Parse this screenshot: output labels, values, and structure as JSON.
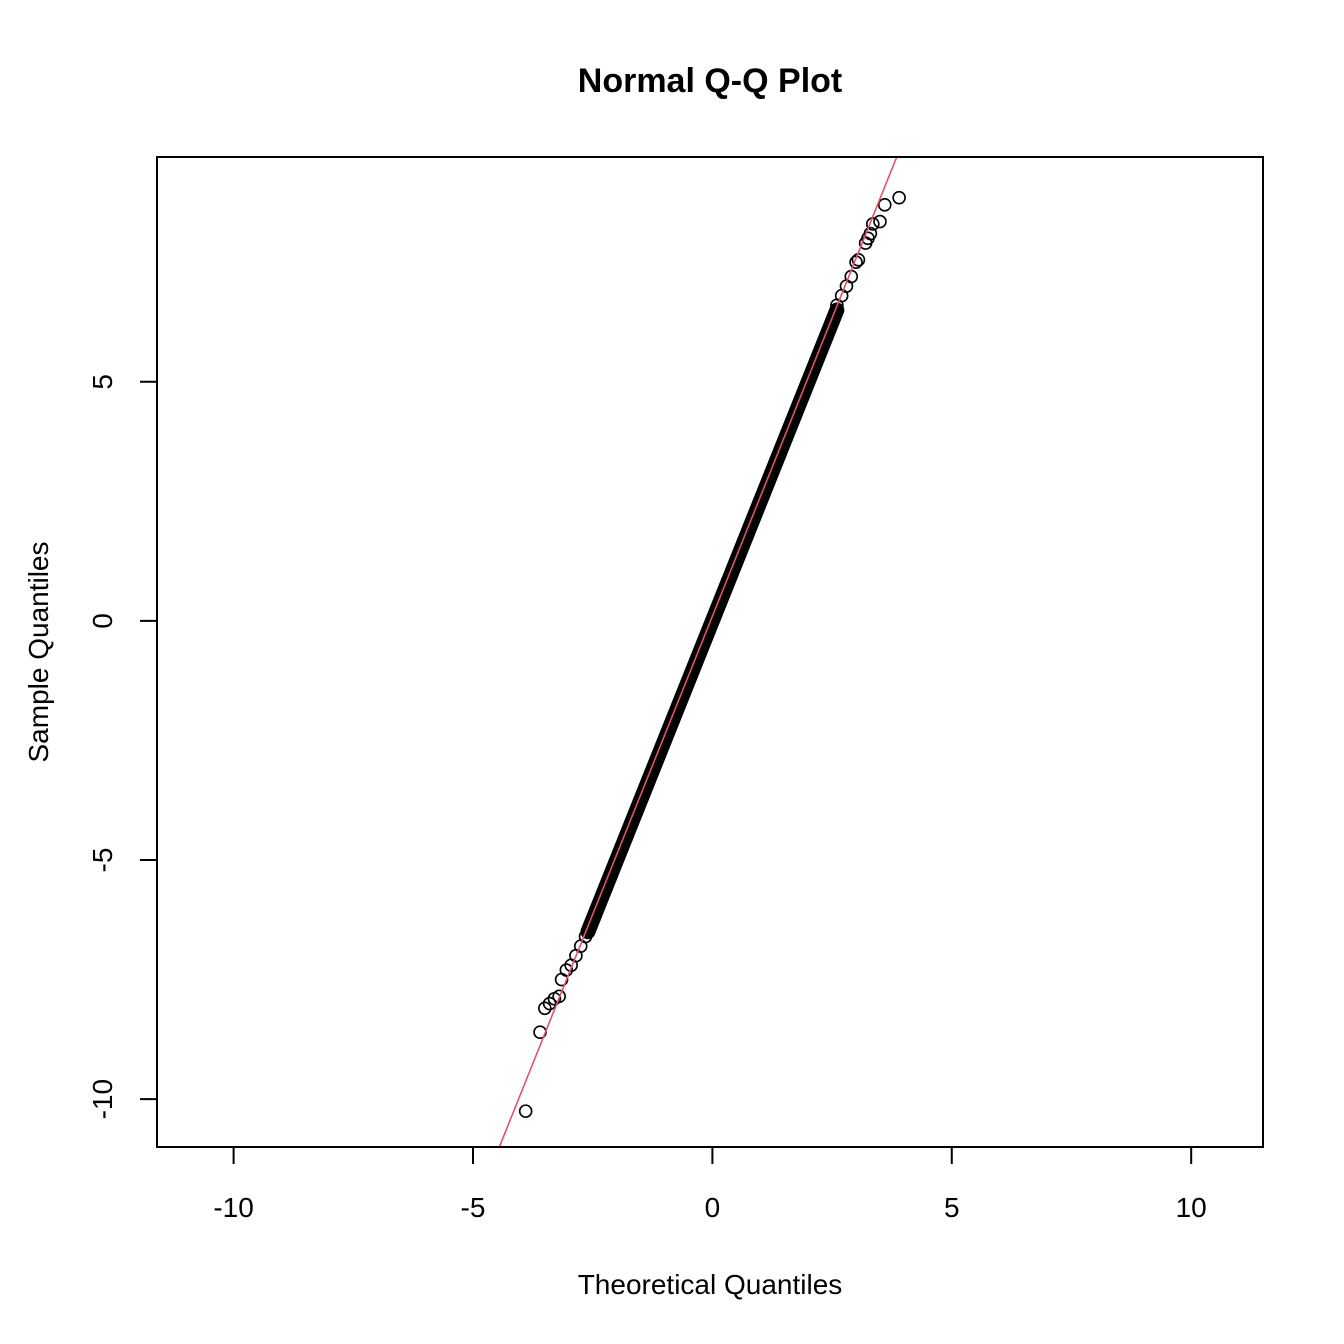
{
  "chart_data": {
    "type": "scatter",
    "title": "Normal Q-Q Plot",
    "xlabel": "Theoretical Quantiles",
    "ylabel": "Sample Quantiles",
    "xlim": [
      -11.6,
      11.5
    ],
    "ylim": [
      -11.0,
      9.7
    ],
    "x_ticks": [
      -10,
      -5,
      0,
      5,
      10
    ],
    "y_ticks": [
      -10,
      -5,
      0,
      5
    ],
    "x_tick_labels": [
      "-10",
      "-5",
      "0",
      "5",
      "10"
    ],
    "y_tick_labels": [
      "-10",
      "-5",
      "0",
      "5"
    ],
    "grid": false,
    "legend": "none",
    "point_color": "#000000",
    "reference_line": {
      "color": "#DF536B",
      "x": [
        -4.45,
        3.85
      ],
      "y": [
        -11.0,
        9.7
      ]
    },
    "series": [
      {
        "points": [
          [
            -3.9,
            -10.25
          ],
          [
            -3.6,
            -8.6
          ],
          [
            -3.5,
            -8.1
          ],
          [
            -3.4,
            -8.0
          ],
          [
            -3.3,
            -7.9
          ],
          [
            -3.2,
            -7.85
          ],
          [
            -3.15,
            -7.5
          ],
          [
            -3.05,
            -7.3
          ],
          [
            -2.95,
            -7.2
          ],
          [
            -2.85,
            -7.0
          ],
          [
            -2.75,
            -6.8
          ],
          [
            -2.65,
            -6.6
          ],
          [
            -2.5,
            -6.25
          ],
          [
            -2.0,
            -5.0
          ],
          [
            -1.5,
            -3.75
          ],
          [
            -1.0,
            -2.5
          ],
          [
            -0.5,
            -1.25
          ],
          [
            0.0,
            0.0
          ],
          [
            0.5,
            1.25
          ],
          [
            1.0,
            2.5
          ],
          [
            1.5,
            3.75
          ],
          [
            2.0,
            5.0
          ],
          [
            2.5,
            6.25
          ],
          [
            2.6,
            6.6
          ],
          [
            2.7,
            6.8
          ],
          [
            2.8,
            7.0
          ],
          [
            2.9,
            7.2
          ],
          [
            3.0,
            7.5
          ],
          [
            3.05,
            7.55
          ],
          [
            3.2,
            7.9
          ],
          [
            3.25,
            8.0
          ],
          [
            3.3,
            8.1
          ],
          [
            3.35,
            8.3
          ],
          [
            3.5,
            8.35
          ],
          [
            3.6,
            8.7
          ],
          [
            3.9,
            8.85
          ]
        ]
      }
    ]
  }
}
